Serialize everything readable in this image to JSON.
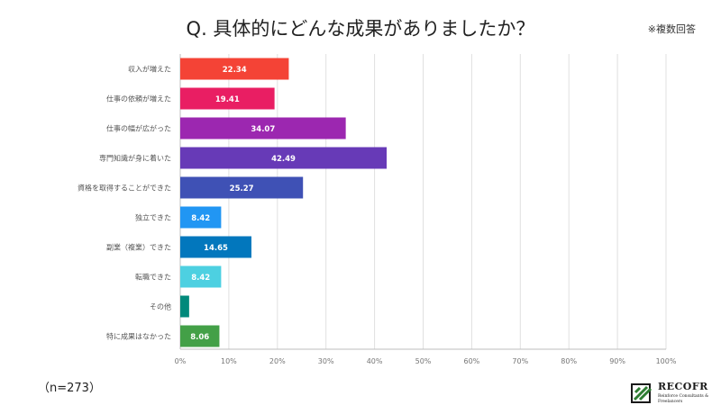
{
  "header": {
    "title": "Q. 具体的にどんな成果がありましたか？",
    "note": "※複数回答"
  },
  "footer": {
    "sample": "（n=273）"
  },
  "logo": {
    "name": "RECOFR",
    "tagline": "Reinforce Consultants & Freelancers",
    "mark_color": "#2e7d32"
  },
  "chart_data": {
    "type": "bar",
    "orientation": "horizontal",
    "title": "Q. 具体的にどんな成果がありましたか？",
    "xlabel": "",
    "ylabel": "",
    "xlim": [
      0,
      100
    ],
    "grid": true,
    "legend": "none",
    "ticks": [
      "0%",
      "10%",
      "20%",
      "30%",
      "40%",
      "50%",
      "60%",
      "70%",
      "80%",
      "90%",
      "100%"
    ],
    "categories": [
      "収入が増えた",
      "仕事の依頼が増えた",
      "仕事の幅が広がった",
      "専門知識が身に着いた",
      "資格を取得することができた",
      "独立できた",
      "副業（複業）できた",
      "転職できた",
      "その他",
      "特に成果はなかった"
    ],
    "values": [
      22.34,
      19.41,
      34.07,
      42.49,
      25.27,
      8.42,
      14.65,
      8.42,
      1.83,
      8.06
    ],
    "labels": [
      "22.34",
      "19.41",
      "34.07",
      "42.49",
      "25.27",
      "8.42",
      "14.65",
      "8.42",
      "",
      "8.06"
    ],
    "colors": [
      "#f44336",
      "#e91e63",
      "#9c27b0",
      "#673ab7",
      "#3f51b5",
      "#2196f3",
      "#0277bd",
      "#4dd0e1",
      "#00897b",
      "#43a047"
    ]
  }
}
